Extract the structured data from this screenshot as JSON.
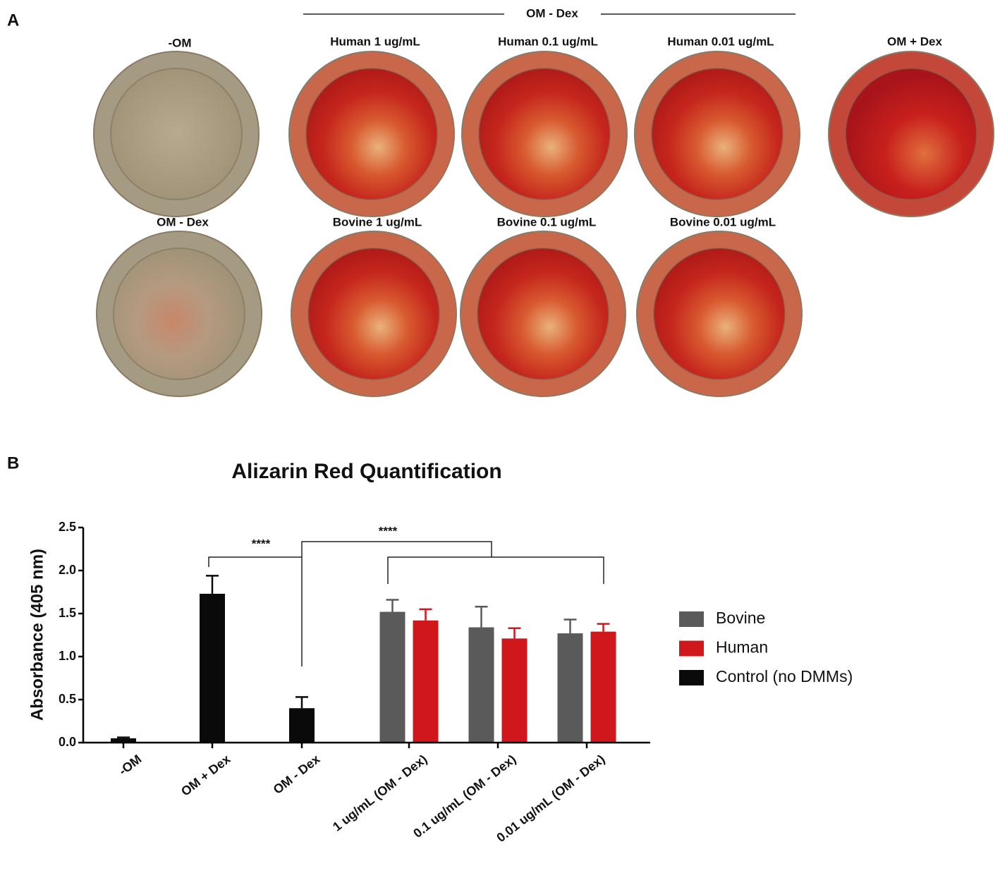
{
  "panel_a": {
    "label": "A",
    "header": "OM - Dex",
    "wells": [
      {
        "label": "-OM"
      },
      {
        "label": "Human 1 ug/mL"
      },
      {
        "label": "Human 0.1 ug/mL"
      },
      {
        "label": "Human 0.01 ug/mL"
      },
      {
        "label": "OM + Dex"
      },
      {
        "label": "OM - Dex"
      },
      {
        "label": "Bovine 1 ug/mL"
      },
      {
        "label": "Bovine 0.1 ug/mL"
      },
      {
        "label": "Bovine 0.01 ug/mL"
      }
    ]
  },
  "chart_data": {
    "type": "bar",
    "panel_label": "B",
    "title": "Alizarin Red Quantification",
    "y_label": "Absorbance (405 nm)",
    "categories": [
      "-OM",
      "OM + Dex",
      "OM - Dex",
      "1 ug/mL (OM - Dex)",
      "0.1 ug/mL (OM - Dex)",
      "0.01 ug/mL (OM - Dex)"
    ],
    "series": [
      {
        "name": "Bovine",
        "color": "#5a5a5a",
        "values": [
          null,
          null,
          null,
          1.52,
          1.34,
          1.27
        ],
        "errors": [
          null,
          null,
          null,
          0.14,
          0.24,
          0.16
        ]
      },
      {
        "name": "Human",
        "color": "#d0181c",
        "values": [
          null,
          null,
          null,
          1.42,
          1.21,
          1.29
        ],
        "errors": [
          null,
          null,
          null,
          0.13,
          0.12,
          0.09
        ]
      },
      {
        "name": "Control (no DMMs)",
        "color": "#0a0a0a",
        "values": [
          0.05,
          1.73,
          0.4,
          null,
          null,
          null
        ],
        "errors": [
          0.01,
          0.21,
          0.13,
          null,
          null,
          null
        ]
      }
    ],
    "ylim": [
      0,
      2.5
    ],
    "yticks": [
      {
        "value": 0,
        "label": "0.0"
      },
      {
        "value": 0.5,
        "label": "0.5"
      },
      {
        "value": 1,
        "label": "1.0"
      },
      {
        "value": 1.5,
        "label": "1.5"
      },
      {
        "value": 2,
        "label": "2.0"
      },
      {
        "value": 2.5,
        "label": "2.5"
      }
    ],
    "annotations": [
      "****",
      "****"
    ]
  }
}
